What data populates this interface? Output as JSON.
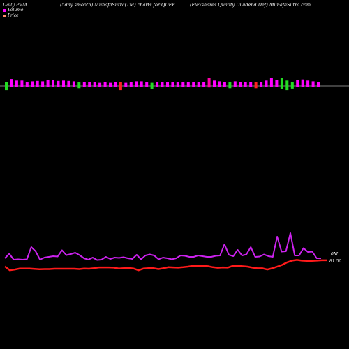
{
  "header": {
    "left": "Daily PVM",
    "middle": "(5day smooth) MunafaSutra(TM) charts for QDEF",
    "right": "(Flexshares Quality Dividend Def) MunafaSutra.com"
  },
  "legend": [
    {
      "label": "Volume",
      "color": "#ff00ff"
    },
    {
      "label": "Price",
      "color": "#ff8c69"
    }
  ],
  "chart_data": {
    "type": "line",
    "volume": {
      "colors": {
        "up": "#ff00ff",
        "mixed": "#ff00aa",
        "down_red": "#ff2222",
        "down_green": "#22dd22"
      },
      "bars": [
        {
          "v": 0.55,
          "d": 0.55,
          "c": "down_green"
        },
        {
          "v": 0.9,
          "d": 0.15,
          "c": "up"
        },
        {
          "v": 0.7,
          "d": 0.1,
          "c": "up"
        },
        {
          "v": 0.7,
          "d": 0.15,
          "c": "up"
        },
        {
          "v": 0.55,
          "d": 0.15,
          "c": "up"
        },
        {
          "v": 0.6,
          "d": 0.15,
          "c": "up"
        },
        {
          "v": 0.65,
          "d": 0.15,
          "c": "up"
        },
        {
          "v": 0.6,
          "d": 0.15,
          "c": "up"
        },
        {
          "v": 0.8,
          "d": 0.15,
          "c": "up"
        },
        {
          "v": 0.75,
          "d": 0.15,
          "c": "up"
        },
        {
          "v": 0.65,
          "d": 0.15,
          "c": "up"
        },
        {
          "v": 0.7,
          "d": 0.15,
          "c": "up"
        },
        {
          "v": 0.65,
          "d": 0.15,
          "c": "up"
        },
        {
          "v": 0.6,
          "d": 0.15,
          "c": "up"
        },
        {
          "v": 0.5,
          "d": 0.3,
          "c": "down_green"
        },
        {
          "v": 0.45,
          "d": 0.15,
          "c": "up"
        },
        {
          "v": 0.5,
          "d": 0.15,
          "c": "up"
        },
        {
          "v": 0.45,
          "d": 0.15,
          "c": "up"
        },
        {
          "v": 0.4,
          "d": 0.15,
          "c": "up"
        },
        {
          "v": 0.45,
          "d": 0.15,
          "c": "up"
        },
        {
          "v": 0.4,
          "d": 0.15,
          "c": "up"
        },
        {
          "v": 0.45,
          "d": 0.15,
          "c": "up"
        },
        {
          "v": 0.55,
          "d": 0.55,
          "c": "down_red"
        },
        {
          "v": 0.4,
          "d": 0.15,
          "c": "up"
        },
        {
          "v": 0.55,
          "d": 0.15,
          "c": "up"
        },
        {
          "v": 0.6,
          "d": 0.15,
          "c": "up"
        },
        {
          "v": 0.6,
          "d": 0.15,
          "c": "up"
        },
        {
          "v": 0.45,
          "d": 0.15,
          "c": "up"
        },
        {
          "v": 0.4,
          "d": 0.45,
          "c": "down_green"
        },
        {
          "v": 0.5,
          "d": 0.15,
          "c": "up"
        },
        {
          "v": 0.5,
          "d": 0.15,
          "c": "up"
        },
        {
          "v": 0.55,
          "d": 0.15,
          "c": "up"
        },
        {
          "v": 0.5,
          "d": 0.15,
          "c": "up"
        },
        {
          "v": 0.5,
          "d": 0.15,
          "c": "up"
        },
        {
          "v": 0.55,
          "d": 0.15,
          "c": "up"
        },
        {
          "v": 0.5,
          "d": 0.15,
          "c": "up"
        },
        {
          "v": 0.55,
          "d": 0.15,
          "c": "up"
        },
        {
          "v": 0.45,
          "d": 0.15,
          "c": "up"
        },
        {
          "v": 0.55,
          "d": 0.15,
          "c": "up"
        },
        {
          "v": 1.0,
          "d": 0.2,
          "c": "mixed"
        },
        {
          "v": 0.7,
          "d": 0.15,
          "c": "up"
        },
        {
          "v": 0.6,
          "d": 0.15,
          "c": "up"
        },
        {
          "v": 0.5,
          "d": 0.15,
          "c": "up"
        },
        {
          "v": 0.5,
          "d": 0.3,
          "c": "down_green"
        },
        {
          "v": 0.6,
          "d": 0.15,
          "c": "up"
        },
        {
          "v": 0.5,
          "d": 0.15,
          "c": "up"
        },
        {
          "v": 0.55,
          "d": 0.15,
          "c": "up"
        },
        {
          "v": 0.5,
          "d": 0.15,
          "c": "up"
        },
        {
          "v": 0.5,
          "d": 0.3,
          "c": "down_red"
        },
        {
          "v": 0.5,
          "d": 0.15,
          "c": "up"
        },
        {
          "v": 0.7,
          "d": 0.15,
          "c": "up"
        },
        {
          "v": 1.0,
          "d": 0.15,
          "c": "up"
        },
        {
          "v": 0.75,
          "d": 0.15,
          "c": "up"
        },
        {
          "v": 1.0,
          "d": 0.45,
          "c": "down_green"
        },
        {
          "v": 0.7,
          "d": 0.55,
          "c": "down_green"
        },
        {
          "v": 0.55,
          "d": 0.35,
          "c": "down_green"
        },
        {
          "v": 0.75,
          "d": 0.15,
          "c": "up"
        },
        {
          "v": 0.85,
          "d": 0.15,
          "c": "up"
        },
        {
          "v": 0.7,
          "d": 0.15,
          "c": "up"
        },
        {
          "v": 0.6,
          "d": 0.15,
          "c": "up"
        },
        {
          "v": 0.5,
          "d": 0.15,
          "c": "up"
        }
      ]
    },
    "series": [
      {
        "role": "volume_line",
        "color": "#cc22ee",
        "values": [
          0.6,
          1.25,
          0.4,
          0.45,
          0.4,
          0.45,
          2.2,
          1.6,
          0.4,
          0.7,
          0.8,
          0.9,
          0.85,
          1.75,
          1.05,
          1.2,
          1.4,
          1.05,
          0.6,
          0.4,
          0.7,
          0.35,
          0.4,
          0.8,
          0.5,
          0.7,
          0.65,
          0.75,
          0.6,
          0.5,
          1.1,
          0.45,
          1.0,
          1.15,
          1.0,
          0.45,
          0.7,
          0.6,
          0.45,
          0.6,
          1.0,
          0.95,
          0.8,
          0.8,
          1.0,
          0.9,
          0.8,
          0.8,
          0.95,
          1.0,
          2.6,
          1.1,
          0.9,
          1.8,
          1.0,
          1.15,
          2.2,
          0.8,
          0.85,
          1.15,
          0.9,
          0.8,
          3.7,
          1.55,
          1.6,
          4.2,
          1.0,
          1.0,
          2.05,
          1.5,
          1.55,
          0.6,
          0.6
        ]
      },
      {
        "role": "price_line",
        "color": "#ff1a1a",
        "values": [
          79.9,
          78.9,
          79.1,
          79.35,
          79.35,
          79.35,
          79.25,
          79.15,
          79.2,
          79.2,
          79.3,
          79.3,
          79.3,
          79.3,
          79.3,
          79.2,
          79.35,
          79.3,
          79.45,
          79.65,
          79.65,
          79.65,
          79.6,
          79.35,
          79.45,
          79.5,
          79.35,
          78.9,
          79.35,
          79.45,
          79.45,
          79.2,
          79.4,
          79.7,
          79.65,
          79.6,
          79.7,
          79.85,
          80.05,
          80.0,
          80.05,
          79.95,
          79.7,
          79.55,
          79.65,
          79.6,
          80.0,
          80.1,
          79.95,
          79.85,
          79.6,
          79.4,
          79.4,
          79.1,
          79.4,
          79.85,
          80.3,
          80.95,
          81.4,
          81.6,
          81.4,
          81.35,
          81.35,
          81.4,
          81.5,
          81.5
        ]
      }
    ],
    "labels": {
      "volume_last": "0M",
      "price_last": "81.50"
    }
  }
}
